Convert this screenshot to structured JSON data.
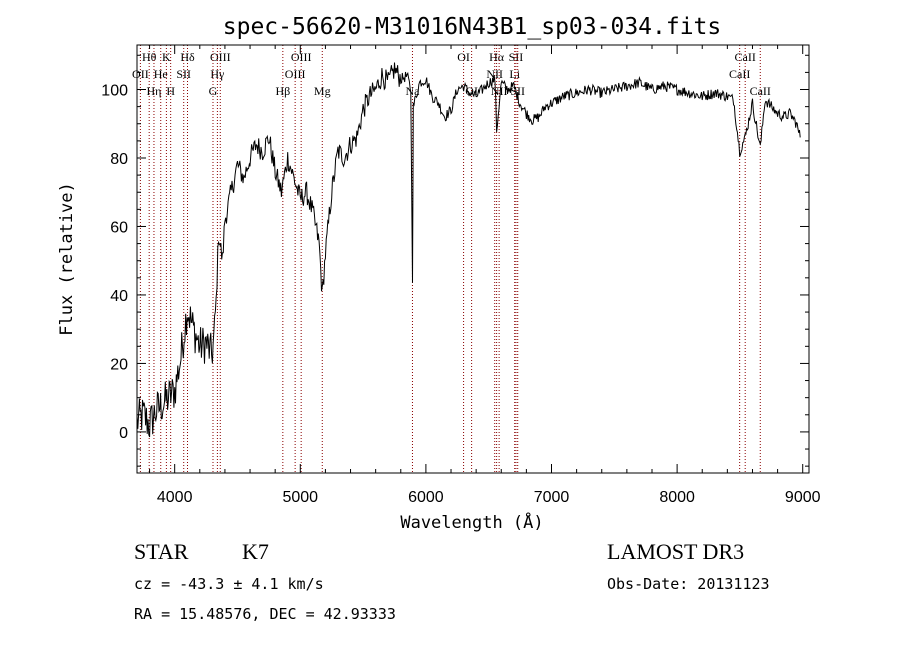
{
  "chart_data": {
    "type": "line",
    "title": "spec-56620-M31016N43B1_sp03-034.fits",
    "xlabel": "Wavelength (Å)",
    "ylabel": "Flux (relative)",
    "xlim": [
      3700,
      9050
    ],
    "ylim": [
      -12,
      113
    ],
    "x_ticks": [
      4000,
      5000,
      6000,
      7000,
      8000,
      9000
    ],
    "x_tick_labels": [
      "4000",
      "5000",
      "6000",
      "7000",
      "8000",
      "9000"
    ],
    "y_ticks": [
      0,
      20,
      40,
      60,
      80,
      100
    ],
    "y_tick_labels": [
      "0",
      "20",
      "40",
      "60",
      "80",
      "100"
    ],
    "series": [
      {
        "name": "spectrum",
        "x": [
          3700,
          3750,
          3800,
          3850,
          3900,
          3950,
          4000,
          4050,
          4100,
          4150,
          4200,
          4250,
          4300,
          4330,
          4350,
          4380,
          4400,
          4450,
          4500,
          4550,
          4600,
          4650,
          4700,
          4750,
          4800,
          4850,
          4900,
          4950,
          5000,
          5050,
          5100,
          5150,
          5175,
          5200,
          5250,
          5300,
          5350,
          5400,
          5450,
          5500,
          5550,
          5600,
          5650,
          5700,
          5750,
          5800,
          5850,
          5880,
          5893,
          5900,
          5950,
          6000,
          6050,
          6100,
          6150,
          6200,
          6250,
          6300,
          6350,
          6400,
          6450,
          6500,
          6550,
          6563,
          6600,
          6650,
          6700,
          6750,
          6800,
          6850,
          6900,
          6950,
          7000,
          7100,
          7200,
          7300,
          7400,
          7500,
          7600,
          7700,
          7800,
          7900,
          8000,
          8100,
          8200,
          8300,
          8400,
          8450,
          8498,
          8542,
          8600,
          8662,
          8700,
          8750,
          8800,
          8850,
          8900,
          8950,
          8980
        ],
        "values": [
          3,
          5,
          2,
          6,
          8,
          10,
          12,
          22,
          36,
          30,
          25,
          26,
          22,
          38,
          58,
          50,
          62,
          70,
          78,
          74,
          80,
          84,
          82,
          86,
          76,
          70,
          80,
          74,
          68,
          70,
          64,
          55,
          40,
          52,
          70,
          82,
          80,
          84,
          86,
          94,
          98,
          100,
          104,
          102,
          106,
          103,
          104,
          100,
          45,
          95,
          102,
          103,
          98,
          96,
          92,
          94,
          100,
          101,
          99,
          98,
          100,
          102,
          103,
          88,
          102,
          100,
          101,
          96,
          93,
          91,
          92,
          95,
          96,
          98,
          99,
          100,
          99,
          100,
          101,
          102,
          100,
          101,
          100,
          99,
          98,
          99,
          98,
          97,
          82,
          86,
          96,
          83,
          97,
          95,
          93,
          92,
          93,
          90,
          86
        ]
      }
    ],
    "emission_lines": [
      {
        "label": "Hθ",
        "wave": 3797,
        "row": 0
      },
      {
        "label": "OII",
        "wave": 3727,
        "row": 1
      },
      {
        "label": "Hη",
        "wave": 3835,
        "row": 2
      },
      {
        "label": "K",
        "wave": 3934,
        "row": 0
      },
      {
        "label": "He",
        "wave": 3889,
        "row": 1
      },
      {
        "label": "H",
        "wave": 3968,
        "row": 2
      },
      {
        "label": "Hδ",
        "wave": 4102,
        "row": 0
      },
      {
        "label": "SII",
        "wave": 4072,
        "row": 1
      },
      {
        "label": "OIII",
        "wave": 4363,
        "row": 0
      },
      {
        "label": "Hγ",
        "wave": 4340,
        "row": 1
      },
      {
        "label": "G",
        "wave": 4305,
        "row": 2
      },
      {
        "label": "Hβ",
        "wave": 4861,
        "row": 2
      },
      {
        "label": "OIII",
        "wave": 5007,
        "row": 0
      },
      {
        "label": "OIII",
        "wave": 4959,
        "row": 1
      },
      {
        "label": "Mg",
        "wave": 5175,
        "row": 2
      },
      {
        "label": "Na",
        "wave": 5893,
        "row": 2
      },
      {
        "label": "OI",
        "wave": 6300,
        "row": 0
      },
      {
        "label": "OI",
        "wave": 6364,
        "row": 2
      },
      {
        "label": "Hα",
        "wave": 6563,
        "row": 0
      },
      {
        "label": "NII",
        "wave": 6548,
        "row": 1
      },
      {
        "label": "NII",
        "wave": 6583,
        "row": 2
      },
      {
        "label": "SII",
        "wave": 6717,
        "row": 0
      },
      {
        "label": "Li",
        "wave": 6707,
        "row": 1
      },
      {
        "label": "SII",
        "wave": 6731,
        "row": 2
      },
      {
        "label": "CaII",
        "wave": 8542,
        "row": 0
      },
      {
        "label": "CaII",
        "wave": 8498,
        "row": 1
      },
      {
        "label": "CaII",
        "wave": 8662,
        "row": 2
      }
    ],
    "line_color": "#8b0000",
    "spectrum_color": "#000000"
  },
  "info": {
    "object_class": "STAR",
    "subclass": "K7",
    "survey": "LAMOST DR3",
    "cz": "cz = -43.3 ± 4.1 km/s",
    "obs_date": "Obs-Date: 20131123",
    "coords": "RA =  15.48576, DEC =  42.93333"
  }
}
